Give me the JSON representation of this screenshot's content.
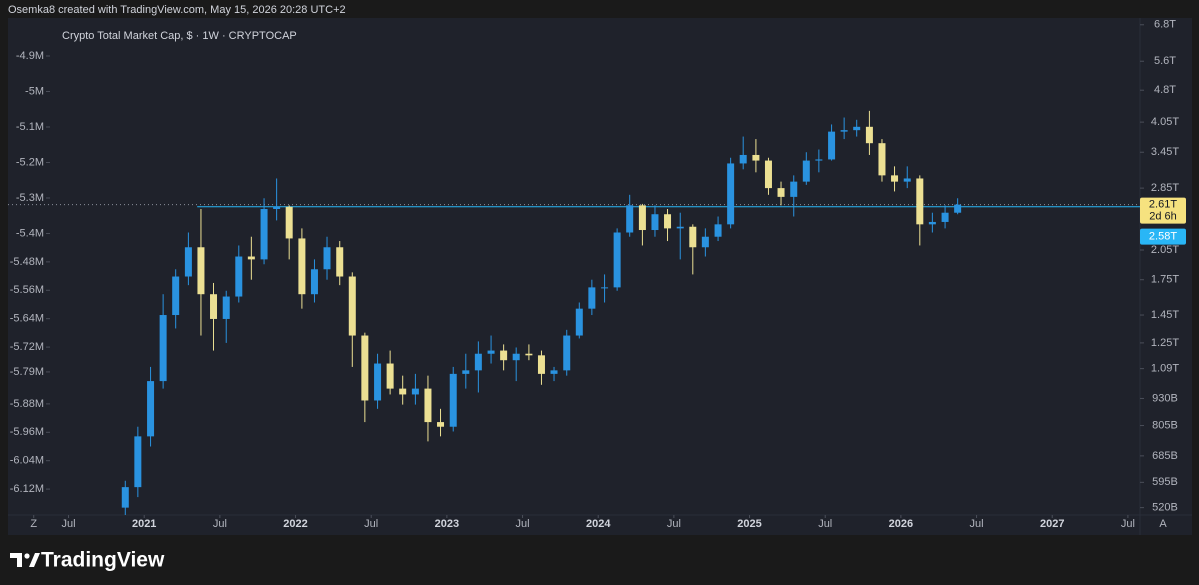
{
  "header": {
    "text": "Osemka8 created with TradingView.com, May 15, 2026 20:28 UTC+2"
  },
  "footer": {
    "brand": "TradingView"
  },
  "chart_data": {
    "type": "candlestick",
    "title": "Crypto Total Market Cap, $ · 1W · CRYPTOCAP",
    "up_color": "#2a93e0",
    "down_color": "#ece093",
    "log_scale": true,
    "grid": false,
    "auto_button": "A",
    "x": [
      2020.875,
      2020.958,
      2021.042,
      2021.125,
      2021.208,
      2021.292,
      2021.375,
      2021.458,
      2021.542,
      2021.625,
      2021.708,
      2021.792,
      2021.875,
      2021.958,
      2022.042,
      2022.125,
      2022.208,
      2022.292,
      2022.375,
      2022.458,
      2022.542,
      2022.625,
      2022.708,
      2022.792,
      2022.875,
      2022.958,
      2023.042,
      2023.125,
      2023.208,
      2023.292,
      2023.375,
      2023.458,
      2023.542,
      2023.625,
      2023.708,
      2023.792,
      2023.875,
      2023.958,
      2024.042,
      2024.125,
      2024.208,
      2024.292,
      2024.375,
      2024.458,
      2024.542,
      2024.625,
      2024.708,
      2024.792,
      2024.875,
      2024.958,
      2025.042,
      2025.125,
      2025.208,
      2025.292,
      2025.375,
      2025.458,
      2025.542,
      2025.625,
      2025.708,
      2025.792,
      2025.875,
      2025.958,
      2026.042,
      2026.125,
      2026.208,
      2026.292,
      2026.375
    ],
    "open": [
      0.52,
      0.58,
      0.76,
      1.02,
      1.45,
      1.78,
      2.08,
      1.62,
      1.42,
      1.6,
      1.98,
      1.95,
      2.55,
      2.58,
      2.18,
      1.62,
      1.85,
      2.08,
      1.78,
      1.3,
      0.92,
      1.12,
      0.98,
      0.95,
      0.98,
      0.82,
      0.8,
      1.06,
      1.08,
      1.18,
      1.2,
      1.14,
      1.18,
      1.17,
      1.06,
      1.08,
      1.3,
      1.5,
      1.68,
      1.68,
      2.25,
      2.6,
      2.28,
      2.48,
      2.3,
      2.32,
      2.08,
      2.2,
      2.35,
      3.25,
      3.4,
      3.3,
      2.85,
      2.72,
      2.95,
      3.3,
      3.32,
      3.85,
      3.88,
      3.95,
      3.62,
      3.05,
      2.95,
      3.0,
      2.35,
      2.38,
      2.5
    ],
    "high": [
      0.6,
      0.8,
      1.1,
      1.62,
      1.85,
      2.25,
      2.55,
      1.72,
      1.65,
      2.1,
      2.2,
      2.7,
      3.0,
      2.6,
      2.3,
      1.95,
      2.2,
      2.15,
      1.82,
      1.32,
      1.18,
      1.2,
      1.05,
      1.06,
      1.05,
      0.88,
      1.1,
      1.18,
      1.26,
      1.3,
      1.24,
      1.22,
      1.24,
      1.2,
      1.1,
      1.34,
      1.55,
      1.75,
      1.8,
      2.3,
      2.75,
      2.62,
      2.6,
      2.55,
      2.5,
      2.35,
      2.3,
      2.45,
      3.35,
      3.75,
      3.7,
      3.35,
      2.95,
      3.05,
      3.45,
      3.5,
      4.0,
      4.15,
      4.1,
      4.3,
      3.7,
      3.2,
      3.2,
      3.05,
      2.5,
      2.6,
      2.7
    ],
    "low": [
      0.5,
      0.55,
      0.72,
      0.98,
      1.35,
      1.7,
      1.3,
      1.2,
      1.25,
      1.55,
      1.75,
      1.9,
      2.4,
      1.95,
      1.5,
      1.55,
      1.75,
      1.7,
      1.1,
      0.82,
      0.88,
      0.95,
      0.9,
      0.9,
      0.74,
      0.76,
      0.78,
      0.98,
      0.96,
      1.12,
      1.08,
      1.02,
      1.14,
      1.0,
      1.02,
      1.05,
      1.28,
      1.45,
      1.55,
      1.65,
      2.2,
      2.1,
      2.2,
      2.15,
      1.95,
      1.8,
      1.98,
      2.15,
      2.3,
      3.15,
      3.1,
      2.75,
      2.6,
      2.45,
      2.9,
      3.1,
      3.3,
      3.7,
      3.75,
      3.4,
      2.95,
      2.8,
      2.85,
      2.1,
      2.25,
      2.3,
      2.48
    ],
    "close": [
      0.58,
      0.76,
      1.02,
      1.45,
      1.78,
      2.08,
      1.62,
      1.42,
      1.6,
      1.98,
      1.95,
      2.55,
      2.58,
      2.18,
      1.62,
      1.85,
      2.08,
      1.78,
      1.3,
      0.92,
      1.12,
      0.98,
      0.95,
      0.98,
      0.82,
      0.8,
      1.06,
      1.08,
      1.18,
      1.2,
      1.14,
      1.18,
      1.17,
      1.06,
      1.08,
      1.3,
      1.5,
      1.68,
      1.68,
      2.25,
      2.6,
      2.28,
      2.48,
      2.3,
      2.32,
      2.08,
      2.2,
      2.35,
      3.25,
      3.4,
      3.3,
      2.85,
      2.72,
      2.95,
      3.3,
      3.32,
      3.85,
      3.88,
      3.95,
      3.62,
      3.05,
      2.95,
      3.0,
      2.35,
      2.38,
      2.5,
      2.61
    ],
    "xlim": [
      2020.1,
      2027.58
    ],
    "xticks": [
      {
        "value": 2020.27,
        "label": "Z"
      },
      {
        "value": 2020.5,
        "label": "Jul"
      },
      {
        "value": 2021,
        "label": "2021"
      },
      {
        "value": 2021.5,
        "label": "Jul"
      },
      {
        "value": 2022,
        "label": "2022"
      },
      {
        "value": 2022.5,
        "label": "Jul"
      },
      {
        "value": 2023,
        "label": "2023"
      },
      {
        "value": 2023.5,
        "label": "Jul"
      },
      {
        "value": 2024,
        "label": "2024"
      },
      {
        "value": 2024.5,
        "label": "Jul"
      },
      {
        "value": 2025,
        "label": "2025"
      },
      {
        "value": 2025.5,
        "label": "Jul"
      },
      {
        "value": 2026,
        "label": "2026"
      },
      {
        "value": 2026.5,
        "label": "Jul"
      },
      {
        "value": 2027,
        "label": "2027"
      },
      {
        "value": 2027.5,
        "label": "Jul"
      }
    ],
    "ylim": [
      0.5,
      7.05
    ],
    "yticks": [
      {
        "value": 6.8,
        "label": "6.8T"
      },
      {
        "value": 5.6,
        "label": "5.6T"
      },
      {
        "value": 4.8,
        "label": "4.8T"
      },
      {
        "value": 4.05,
        "label": "4.05T"
      },
      {
        "value": 3.45,
        "label": "3.45T"
      },
      {
        "value": 2.85,
        "label": "2.85T"
      },
      {
        "value": 2.05,
        "label": "2.05T"
      },
      {
        "value": 1.75,
        "label": "1.75T"
      },
      {
        "value": 1.45,
        "label": "1.45T"
      },
      {
        "value": 1.25,
        "label": "1.25T"
      },
      {
        "value": 1.09,
        "label": "1.09T"
      },
      {
        "value": 0.93,
        "label": "930B"
      },
      {
        "value": 0.805,
        "label": "805B"
      },
      {
        "value": 0.685,
        "label": "685B"
      },
      {
        "value": 0.595,
        "label": "595B"
      },
      {
        "value": 0.52,
        "label": "520B"
      }
    ],
    "y2lim": [
      -4.793,
      -6.193
    ],
    "y2ticks": [
      {
        "value": -4.9,
        "label": "-4.9M"
      },
      {
        "value": -5,
        "label": "-5M"
      },
      {
        "value": -5.1,
        "label": "-5.1M"
      },
      {
        "value": -5.2,
        "label": "-5.2M"
      },
      {
        "value": -5.3,
        "label": "-5.3M"
      },
      {
        "value": -5.4,
        "label": "-5.4M"
      },
      {
        "value": -5.48,
        "label": "-5.48M"
      },
      {
        "value": -5.56,
        "label": "-5.56M"
      },
      {
        "value": -5.64,
        "label": "-5.64M"
      },
      {
        "value": -5.72,
        "label": "-5.72M"
      },
      {
        "value": -5.79,
        "label": "-5.79M"
      },
      {
        "value": -5.88,
        "label": "-5.88M"
      },
      {
        "value": -5.96,
        "label": "-5.96M"
      },
      {
        "value": -6.04,
        "label": "-6.04M"
      },
      {
        "value": -6.12,
        "label": "-6.12M"
      }
    ],
    "last_price": {
      "value": 2.61,
      "label": "2.61T",
      "countdown": "2d 6h",
      "color": "#f6e27f"
    },
    "horizontal_ray": {
      "value": 2.58,
      "label": "2.58T",
      "start_x": 2021.35,
      "color": "#29b6f6"
    }
  }
}
